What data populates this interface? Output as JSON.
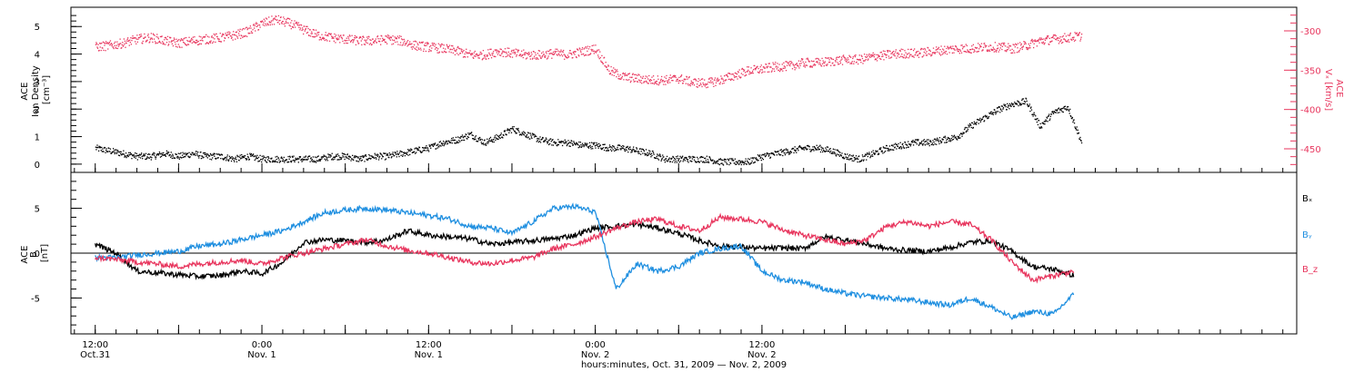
{
  "colors": {
    "black": "#000000",
    "red": "#e8365e",
    "blue": "#1f8fe0"
  },
  "chart_data": [
    {
      "type": "scatter",
      "panel": "top",
      "ylabel_left_lines": [
        "ACE",
        "Ion Density",
        "[cm⁻³]"
      ],
      "ylabel_right_lines": [
        "ACE",
        "Vₓ [km/s]"
      ],
      "left_ylim": [
        -0.3,
        5.7
      ],
      "left_ticks": [
        "0",
        "1",
        "2",
        "3",
        "4",
        "5"
      ],
      "right_ylim": [
        -480,
        -270
      ],
      "right_ticks": [
        "-300",
        "-350",
        "-400",
        "-450"
      ],
      "series": [
        {
          "name": "",
          "axis": "left",
          "color": "black",
          "points_t_hours": [
            0,
            2,
            4,
            6,
            8,
            10,
            12,
            14,
            16,
            18,
            20,
            22,
            24,
            26,
            28,
            30,
            32,
            34,
            36,
            38,
            40,
            42,
            44,
            46,
            48,
            50,
            52,
            54,
            56,
            58,
            60,
            62,
            64,
            66,
            68,
            70,
            72,
            74,
            76,
            78,
            80,
            82,
            84,
            86,
            88,
            90,
            92,
            94,
            96,
            98,
            100,
            102,
            104,
            106,
            108,
            110,
            112,
            114,
            116,
            118,
            120,
            122,
            124,
            126,
            128,
            130,
            132,
            134,
            136,
            138,
            140,
            142
          ],
          "values": [
            0.6,
            0.5,
            0.4,
            0.3,
            0.3,
            0.4,
            0.3,
            0.4,
            0.3,
            0.3,
            0.2,
            0.3,
            0.2,
            0.2,
            0.2,
            0.2,
            0.2,
            0.3,
            0.3,
            0.2,
            0.3,
            0.3,
            0.4,
            0.5,
            0.6,
            0.8,
            0.9,
            1.1,
            0.8,
            1.0,
            1.3,
            1.1,
            0.9,
            0.8,
            0.8,
            0.7,
            0.7,
            0.6,
            0.6,
            0.5,
            0.4,
            0.2,
            0.2,
            0.2,
            0.2,
            0.1,
            0.1,
            0.1,
            0.3,
            0.4,
            0.5,
            0.6,
            0.6,
            0.5,
            0.3,
            0.2,
            0.4,
            0.6,
            0.7,
            0.8,
            0.8,
            0.9,
            1.0,
            1.4,
            1.7,
            2.0,
            2.2,
            2.3,
            1.4,
            1.9,
            2.1,
            0.8
          ]
        },
        {
          "name": "",
          "axis": "right",
          "color": "red",
          "points_t_hours": [
            0,
            2,
            4,
            6,
            8,
            10,
            12,
            14,
            16,
            18,
            20,
            22,
            24,
            26,
            28,
            30,
            32,
            34,
            36,
            38,
            40,
            42,
            44,
            46,
            48,
            50,
            52,
            54,
            56,
            58,
            60,
            62,
            64,
            66,
            68,
            70,
            72,
            74,
            76,
            78,
            80,
            82,
            84,
            86,
            88,
            90,
            92,
            94,
            96,
            98,
            100,
            102,
            104,
            106,
            108,
            110,
            112,
            114,
            116,
            118,
            120,
            122,
            124,
            126,
            128,
            130,
            132,
            134,
            136,
            138,
            140,
            142
          ],
          "values": [
            -320,
            -318,
            -315,
            -310,
            -308,
            -312,
            -315,
            -312,
            -310,
            -308,
            -305,
            -300,
            -290,
            -285,
            -290,
            -298,
            -305,
            -308,
            -310,
            -312,
            -312,
            -310,
            -312,
            -318,
            -320,
            -322,
            -325,
            -330,
            -330,
            -325,
            -328,
            -330,
            -330,
            -328,
            -330,
            -326,
            -322,
            -350,
            -358,
            -360,
            -362,
            -362,
            -360,
            -365,
            -366,
            -362,
            -356,
            -350,
            -348,
            -345,
            -344,
            -340,
            -340,
            -338,
            -336,
            -336,
            -332,
            -330,
            -328,
            -328,
            -326,
            -324,
            -322,
            -322,
            -320,
            -320,
            -322,
            -318,
            -312,
            -310,
            -308,
            -306
          ]
        }
      ]
    },
    {
      "type": "line",
      "panel": "bottom",
      "ylabel_lines": [
        "ACE",
        "B",
        "[nT]"
      ],
      "ylim": [
        -9,
        9
      ],
      "ticks": [
        "5",
        "0",
        "-5"
      ],
      "x_range_hours": [
        -3.5,
        173
      ],
      "xticks": [
        {
          "t": 0,
          "time": "12:00",
          "date": "Oct.31"
        },
        {
          "t": 12,
          "time": "",
          "date": ""
        },
        {
          "t": 24,
          "time": "0:00",
          "date": "Nov. 1"
        },
        {
          "t": 36,
          "time": "",
          "date": ""
        },
        {
          "t": 48,
          "time": "12:00",
          "date": "Nov. 1"
        },
        {
          "t": 60,
          "time": "",
          "date": ""
        },
        {
          "t": 72,
          "time": "0:00",
          "date": "Nov. 2"
        },
        {
          "t": 84,
          "time": "",
          "date": ""
        },
        {
          "t": 96,
          "time": "12:00",
          "date": "Nov. 2"
        },
        {
          "t": 108,
          "time": "",
          "date": ""
        }
      ],
      "xlabel": "hours:minutes, Oct. 31, 2009 — Nov.  2, 2009",
      "legend": [
        "Bₓ",
        "Bᵧ",
        "B_z"
      ],
      "series": [
        {
          "name": "Bₓ",
          "color": "black",
          "points_t_hours": [
            0,
            3,
            6,
            9,
            12,
            15,
            18,
            21,
            24,
            27,
            30,
            33,
            36,
            39,
            42,
            45,
            48,
            51,
            54,
            57,
            60,
            63,
            66,
            69,
            72,
            75,
            78,
            81,
            84,
            87,
            90,
            93,
            96,
            99,
            102,
            105,
            108,
            111,
            114,
            117,
            120,
            123,
            126,
            129,
            132,
            135,
            138,
            141
          ],
          "values": [
            1.0,
            0.0,
            -2.0,
            -2.2,
            -2.4,
            -2.6,
            -2.5,
            -2.0,
            -2.3,
            -1.0,
            1.2,
            1.5,
            1.4,
            1.2,
            1.5,
            2.5,
            2.0,
            1.8,
            1.6,
            1.0,
            1.2,
            1.4,
            1.6,
            2.0,
            2.8,
            3.0,
            3.2,
            2.8,
            2.2,
            1.4,
            0.8,
            0.7,
            0.5,
            0.6,
            0.5,
            1.8,
            1.5,
            1.0,
            0.5,
            0.3,
            0.2,
            0.6,
            1.2,
            1.4,
            0.2,
            -1.5,
            -1.8,
            -2.5
          ]
        },
        {
          "name": "Bᵧ",
          "color": "blue",
          "points_t_hours": [
            0,
            3,
            6,
            9,
            12,
            15,
            18,
            21,
            24,
            27,
            30,
            33,
            36,
            39,
            42,
            45,
            48,
            51,
            54,
            57,
            60,
            63,
            66,
            69,
            72,
            75,
            78,
            81,
            84,
            87,
            90,
            93,
            96,
            99,
            102,
            105,
            108,
            111,
            114,
            117,
            120,
            123,
            126,
            129,
            132,
            135,
            138,
            141
          ],
          "values": [
            -0.5,
            -0.5,
            -0.2,
            0.0,
            0.2,
            0.8,
            1.0,
            1.5,
            2.0,
            2.5,
            3.5,
            4.5,
            4.8,
            5.0,
            4.8,
            4.5,
            4.2,
            3.8,
            3.0,
            2.8,
            2.2,
            3.5,
            5.0,
            5.2,
            4.6,
            -4.0,
            -1.2,
            -2.0,
            -1.5,
            0.0,
            0.5,
            0.8,
            -2.0,
            -3.0,
            -3.2,
            -4.0,
            -4.5,
            -4.8,
            -5.0,
            -5.2,
            -5.5,
            -5.8,
            -5.0,
            -6.0,
            -7.2,
            -6.5,
            -6.8,
            -4.5
          ]
        },
        {
          "name": "B_z",
          "color": "red",
          "points_t_hours": [
            0,
            3,
            6,
            9,
            12,
            15,
            18,
            21,
            24,
            27,
            30,
            33,
            36,
            39,
            42,
            45,
            48,
            51,
            54,
            57,
            60,
            63,
            66,
            69,
            72,
            75,
            78,
            81,
            84,
            87,
            90,
            93,
            96,
            99,
            102,
            105,
            108,
            111,
            114,
            117,
            120,
            123,
            126,
            129,
            132,
            135,
            138,
            141
          ],
          "values": [
            -0.5,
            -0.7,
            -1.0,
            -1.2,
            -1.5,
            -1.2,
            -1.0,
            -0.8,
            -1.2,
            -0.5,
            0.0,
            0.5,
            1.0,
            1.5,
            0.8,
            0.3,
            0.0,
            -0.5,
            -1.0,
            -1.2,
            -0.8,
            -0.5,
            0.5,
            1.0,
            1.8,
            2.8,
            3.5,
            3.8,
            3.0,
            2.5,
            4.0,
            3.8,
            3.5,
            2.6,
            2.0,
            1.5,
            1.0,
            1.5,
            3.0,
            3.5,
            3.0,
            3.5,
            3.2,
            1.5,
            -1.0,
            -3.0,
            -2.5,
            -2.0
          ]
        }
      ]
    }
  ]
}
